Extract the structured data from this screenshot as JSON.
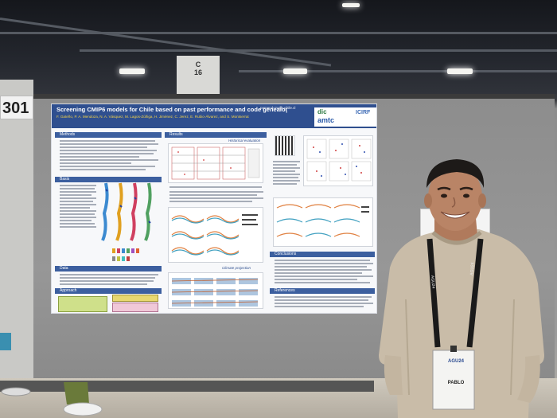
{
  "scene": {
    "pillar_label_top": "C",
    "pillar_label_bottom": "16",
    "booth_number": "301"
  },
  "poster": {
    "title": "Screening CMIP6 models for Chile based on past performance and code genealogy",
    "authors": "F. Gateño, P. A. Mendoza, N. A. Vásquez, M. Lagos-Zúñiga, H. Jiménez, C. Jerez, E. Rubio-Álvarez, and S. Montserrat",
    "email": "pamendoza@uchile.cl",
    "logos": [
      "dic",
      "amtc",
      "ICIRF"
    ],
    "sections": {
      "methods": "Methods",
      "basis": "Basis",
      "data": "Data",
      "approach": "Approach",
      "results": "Results",
      "historical": "Historical evaluation",
      "climate": "Climate projection",
      "conclusions": "Conclusions",
      "references": "References"
    }
  },
  "badge": {
    "top_text": "AGU24",
    "name": "PABLO"
  },
  "colors": {
    "poster_header": "#2f4f8f",
    "shirt": "#c8bba8",
    "lanyard": "#1a1a1a"
  }
}
